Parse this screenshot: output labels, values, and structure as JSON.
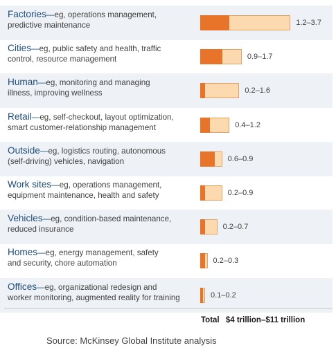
{
  "chart_data": {
    "type": "bar",
    "orientation": "horizontal",
    "series": [
      {
        "name": "low",
        "values": [
          1.2,
          0.9,
          0.2,
          0.4,
          0.6,
          0.2,
          0.2,
          0.2,
          0.1
        ]
      },
      {
        "name": "high",
        "values": [
          3.7,
          1.7,
          1.6,
          1.2,
          0.9,
          0.9,
          0.7,
          0.3,
          0.2
        ]
      }
    ],
    "categories": [
      "Factories",
      "Cities",
      "Human",
      "Retail",
      "Outside",
      "Work sites",
      "Vehicles",
      "Homes",
      "Offices"
    ],
    "descriptions": [
      "eg, operations management, predictive maintenance",
      "eg, public safety and health, traffic control, resource management",
      "eg, monitoring and managing illness, improving wellness",
      "eg, self-checkout, layout optimization, smart customer-relationship management",
      "eg, logistics routing, autonomous (self-driving) vehicles, navigation",
      "eg, operations management, equipment maintenance, health and safety",
      "eg, condition-based maintenance, reduced insurance",
      "eg, energy management, safety and security, chore automation",
      "eg, organizational redesign and worker monitoring, augmented reality for training"
    ],
    "range_labels": [
      "1.2–3.7",
      "0.9–1.7",
      "0.2–1.6",
      "0.4–1.2",
      "0.6–0.9",
      "0.2–0.9",
      "0.2–0.7",
      "0.2–0.3",
      "0.1–0.2"
    ],
    "total_label": "Total",
    "total_value": "$4 trillion–$11 trillion",
    "source": "Source: McKinsey Global Institute analysis",
    "colors": {
      "low": "#e8742a",
      "high": "#fdd9b0",
      "high_border": "#e8a060",
      "category": "#1f4e79",
      "row_shade": "#eef1f5"
    }
  }
}
